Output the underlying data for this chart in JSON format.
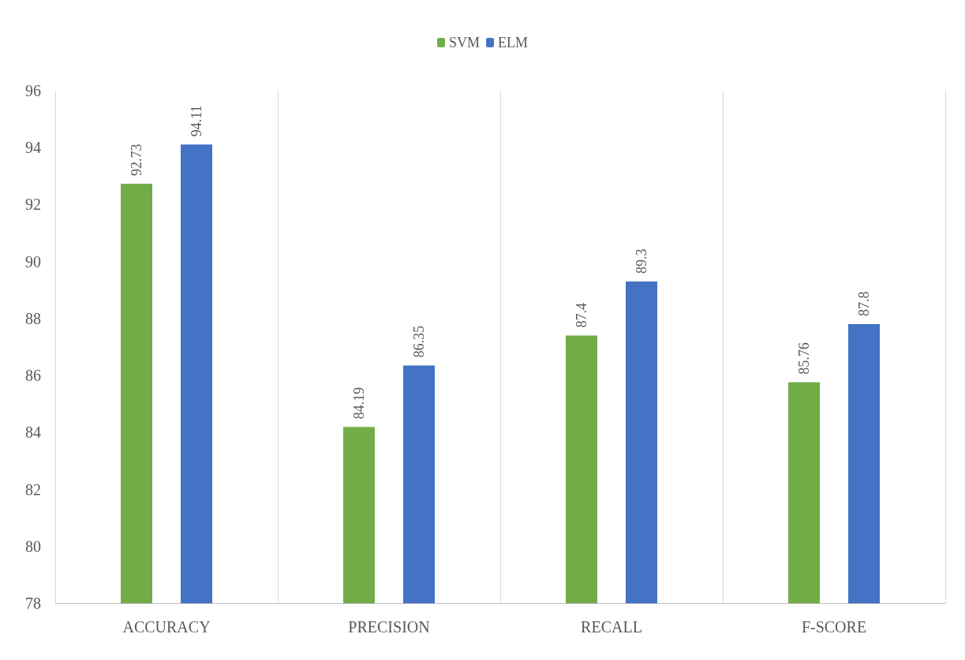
{
  "chart_data": {
    "type": "bar",
    "categories": [
      "ACCURACY",
      "PRECISION",
      "RECALL",
      "F-SCORE"
    ],
    "series": [
      {
        "name": "SVM",
        "color": "#70ad47",
        "values": [
          92.73,
          84.19,
          87.4,
          85.76
        ]
      },
      {
        "name": "ELM",
        "color": "#4472c4",
        "values": [
          94.11,
          86.35,
          89.3,
          87.8
        ]
      }
    ],
    "ylim": [
      78,
      96
    ],
    "yticks": [
      78,
      80,
      82,
      84,
      86,
      88,
      90,
      92,
      94,
      96
    ],
    "grid": "x",
    "legend": "top",
    "data_labels": true
  }
}
